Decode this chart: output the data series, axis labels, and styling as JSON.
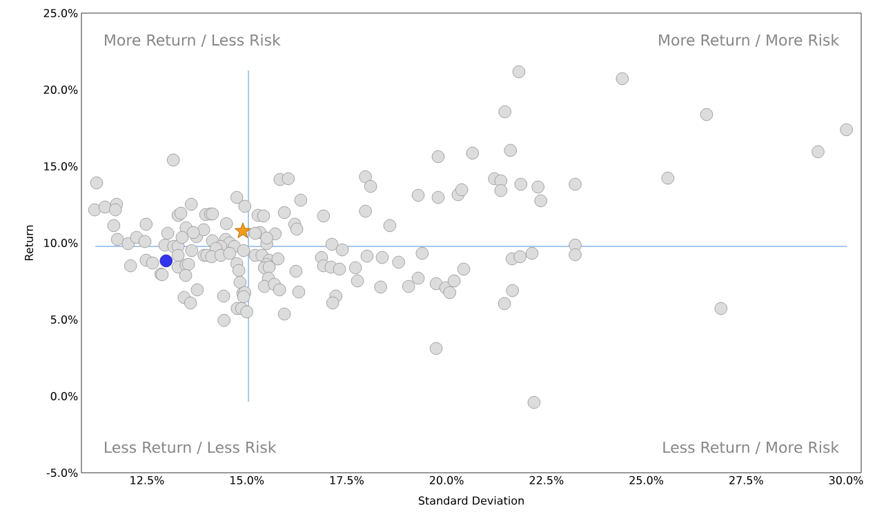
{
  "chart_data": {
    "type": "scatter",
    "xlabel": "Standard Deviation",
    "ylabel": "Return",
    "xlim": [
      10.86,
      30.38
    ],
    "ylim": [
      -5,
      25
    ],
    "xticks": [
      {
        "value": 12.5,
        "label": "12.5%"
      },
      {
        "value": 15,
        "label": "15.0%"
      },
      {
        "value": 17.5,
        "label": "17.5%"
      },
      {
        "value": 20,
        "label": "20.0%"
      },
      {
        "value": 22.5,
        "label": "22.5%"
      },
      {
        "value": 25,
        "label": "25.0%"
      },
      {
        "value": 27.5,
        "label": "27.5%"
      },
      {
        "value": 30,
        "label": "30.0%"
      }
    ],
    "yticks": [
      {
        "value": -5,
        "label": "-5.0%"
      },
      {
        "value": 0,
        "label": "0.0%"
      },
      {
        "value": 5,
        "label": "5.0%"
      },
      {
        "value": 10,
        "label": "10.0%"
      },
      {
        "value": 15,
        "label": "15.0%"
      },
      {
        "value": 20,
        "label": "20.0%"
      },
      {
        "value": 25,
        "label": "25.0%"
      }
    ],
    "annotations": [
      "More Return / Less Risk",
      "More Return / More Risk",
      "Less Return / Less Risk",
      "Less Return / More Risk"
    ],
    "series": [
      {
        "type": "line",
        "color": "#8ab4e8",
        "x": [
          11.21,
          30.03
        ],
        "values": [
          9.77,
          9.77
        ]
      },
      {
        "type": "line",
        "color": "#8ab4e8",
        "x": [
          15.04,
          15.04
        ],
        "values": [
          21.26,
          -0.36
        ]
      },
      {
        "marker": "circle",
        "color": "#dcdcdc",
        "x": [
          13.16,
          11.24,
          11.19,
          11.45,
          11.74,
          11.71,
          11.67,
          11.76,
          12.03,
          12.24,
          12.45,
          12.48,
          12.09,
          12.48,
          12.64,
          12.85,
          12.88,
          13.02,
          12.95,
          13.17,
          13.28,
          13.61,
          13.28,
          13.35,
          13.48,
          13.38,
          13.28,
          13.28,
          13.48,
          13.54,
          13.47,
          13.62,
          13.74,
          13.76,
          13.43,
          13.59,
          13.97,
          13.92,
          13.93,
          15.83,
          16.04,
          14.75,
          14.95,
          14.09,
          14.14,
          14.49,
          15.28,
          15.42,
          15.94,
          16.35,
          16.2,
          16.25,
          15.71,
          15.33,
          15.21,
          13.66,
          14.14,
          14.47,
          14.57,
          14.69,
          14.35,
          14.23,
          14.0,
          14.12,
          14.35,
          14.57,
          14.92,
          15.5,
          15.5,
          15.21,
          15.38,
          15.56,
          15.78,
          15.5,
          15.44,
          15.56,
          14.75,
          14.8,
          14.83,
          15.54,
          15.44,
          15.69,
          15.82,
          16.3,
          16.23,
          14.9,
          14.95,
          14.92,
          14.42,
          14.76,
          14.87,
          15.0,
          14.43,
          15.94,
          16.92,
          17.97,
          18.1,
          17.97,
          18.58,
          17.13,
          17.39,
          16.87,
          16.92,
          17.11,
          17.32,
          18.01,
          18.39,
          18.8,
          17.72,
          17.77,
          18.35,
          17.23,
          17.15,
          21.81,
          21.46,
          19.79,
          20.65,
          21.6,
          19.29,
          19.79,
          20.29,
          20.38,
          21.2,
          21.36,
          21.36,
          21.86,
          22.29,
          22.36,
          23.22,
          19.39,
          19.29,
          19.05,
          19.74,
          19.98,
          20.08,
          20.19,
          20.43,
          21.64,
          21.84,
          22.14,
          23.22,
          23.22,
          21.65,
          21.45,
          19.74,
          22.19,
          24.4,
          26.51,
          30.01,
          29.3,
          25.54,
          26.87
        ],
        "values": [
          15.41,
          13.92,
          12.16,
          12.34,
          12.52,
          12.16,
          11.13,
          10.23,
          9.95,
          10.36,
          10.09,
          11.22,
          8.51,
          8.87,
          8.69,
          7.97,
          7.93,
          10.63,
          9.86,
          9.77,
          9.77,
          12.52,
          11.8,
          11.94,
          10.99,
          10.36,
          9.19,
          8.42,
          8.56,
          8.6,
          7.88,
          9.5,
          10.41,
          6.94,
          6.44,
          6.08,
          11.85,
          10.86,
          9.19,
          14.14,
          14.19,
          12.97,
          12.39,
          11.89,
          11.89,
          11.26,
          11.8,
          11.76,
          11.98,
          12.79,
          11.22,
          10.9,
          10.59,
          10.68,
          10.63,
          10.68,
          10.14,
          10.23,
          10.0,
          9.77,
          9.77,
          9.64,
          9.19,
          9.1,
          9.19,
          9.32,
          9.5,
          9.95,
          10.32,
          9.19,
          9.19,
          8.87,
          8.96,
          8.6,
          8.38,
          8.42,
          8.65,
          8.2,
          7.43,
          7.7,
          7.16,
          7.3,
          6.94,
          6.8,
          8.15,
          6.71,
          6.76,
          6.49,
          6.53,
          5.72,
          5.72,
          5.5,
          4.95,
          5.36,
          11.76,
          14.32,
          13.69,
          12.07,
          11.13,
          9.91,
          9.55,
          9.05,
          8.51,
          8.42,
          8.29,
          9.14,
          9.05,
          8.74,
          8.38,
          7.52,
          7.12,
          6.53,
          6.08,
          21.17,
          18.56,
          15.63,
          15.86,
          16.04,
          13.11,
          12.97,
          13.15,
          13.47,
          14.19,
          14.05,
          13.42,
          13.83,
          13.65,
          12.75,
          13.83,
          9.32,
          7.7,
          7.16,
          7.34,
          7.07,
          6.76,
          7.52,
          8.29,
          8.96,
          9.1,
          9.32,
          9.86,
          9.23,
          6.89,
          6.04,
          3.11,
          -0.41,
          20.72,
          18.38,
          17.39,
          15.95,
          14.23,
          5.72
        ]
      },
      {
        "marker": "circle",
        "color": "#3333f0",
        "x": [
          12.98
        ],
        "values": [
          8.83
        ]
      },
      {
        "marker": "star",
        "color": "#f39c1a",
        "x": [
          14.9
        ],
        "values": [
          10.77
        ]
      }
    ]
  }
}
